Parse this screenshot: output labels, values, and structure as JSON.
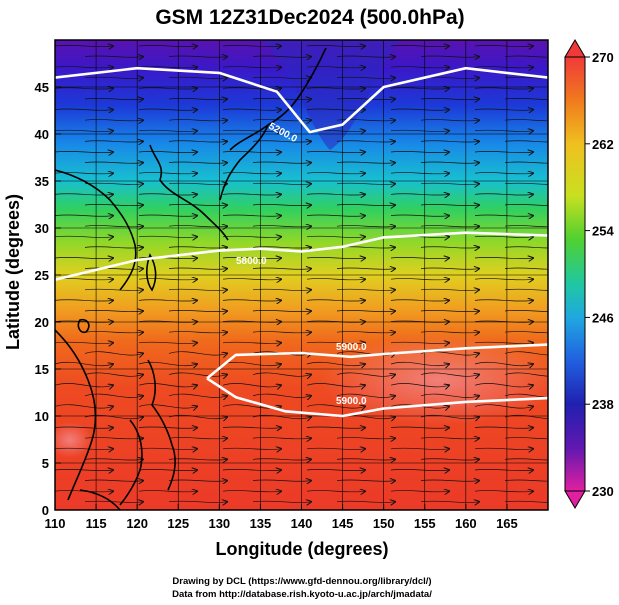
{
  "title": "GSM 12Z31Dec2024 (500.0hPa)",
  "axes": {
    "xlabel": "Longitude (degrees)",
    "ylabel": "Latitude  (degrees)",
    "xticks": [
      "110",
      "115",
      "120",
      "125",
      "130",
      "135",
      "140",
      "145",
      "150",
      "155",
      "160",
      "165"
    ],
    "yticks": [
      "0",
      "5",
      "10",
      "15",
      "20",
      "25",
      "30",
      "35",
      "40",
      "45"
    ]
  },
  "colorbar": {
    "ticks": [
      "270",
      "262",
      "254",
      "246",
      "238",
      "230"
    ],
    "colors": [
      "#f03a3a",
      "#f07a1e",
      "#f0c020",
      "#c8e020",
      "#50d030",
      "#20c8a0",
      "#20a8e0",
      "#2060e0",
      "#2020b0",
      "#6018b0",
      "#b020c0",
      "#e020a0"
    ]
  },
  "contour_labels": [
    "5200.0",
    "5800.0",
    "5900.0",
    "5900.0"
  ],
  "credits": {
    "line1": "Drawing by DCL (https://www.gfd-dennou.org/library/dcl/)",
    "line2": "Data from http://database.rish.kyoto-u.ac.jp/arch/jmadata/"
  },
  "chart_data": {
    "type": "heatmap",
    "title": "GSM 12Z31Dec2024 (500.0hPa)",
    "xlabel": "Longitude (degrees)",
    "ylabel": "Latitude  (degrees)",
    "xlim": [
      110,
      170
    ],
    "ylim": [
      0,
      50
    ],
    "x_ticks": [
      110,
      115,
      120,
      125,
      130,
      135,
      140,
      145,
      150,
      155,
      160,
      165
    ],
    "y_ticks": [
      0,
      5,
      10,
      15,
      20,
      25,
      30,
      35,
      40,
      45
    ],
    "colorbar_range": [
      230,
      270
    ],
    "colorbar_ticks": [
      230,
      238,
      246,
      254,
      262,
      270
    ],
    "overlays": [
      "geopotential height contours",
      "wind streamlines",
      "coastlines",
      "lat-lon grid"
    ],
    "contours": [
      {
        "label": "5200.0",
        "lon": [
          110,
          120,
          130,
          137,
          141,
          145,
          150,
          160,
          170
        ],
        "lat": [
          46,
          47,
          46.5,
          44.5,
          40.2,
          41,
          45,
          47,
          46
        ]
      },
      {
        "label": "5800.0",
        "lon": [
          110,
          120,
          130,
          135,
          140,
          145,
          150,
          160,
          170
        ],
        "lat": [
          24.5,
          26.6,
          27.6,
          27.8,
          27.5,
          28,
          29,
          29.5,
          29.2
        ]
      },
      {
        "label": "5900.0",
        "lon": [
          128.5,
          132,
          138,
          145,
          150,
          160,
          170
        ],
        "lat": [
          14,
          12,
          10.5,
          10,
          10.8,
          11.5,
          11.9
        ]
      },
      {
        "label": "5900.0",
        "lon": [
          128.5,
          132,
          140,
          146,
          150,
          160,
          170
        ],
        "lat": [
          14,
          16.5,
          16.7,
          16.3,
          16.6,
          17.2,
          17.6
        ]
      }
    ],
    "grid": true
  }
}
